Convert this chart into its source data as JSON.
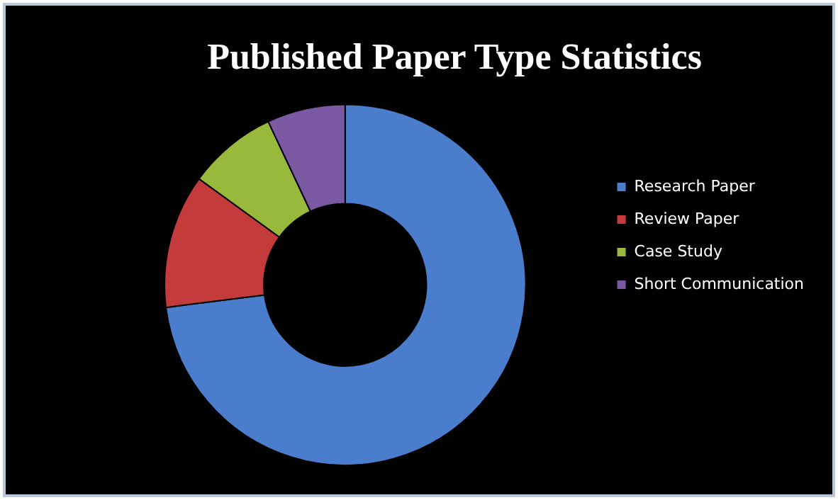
{
  "chart_data": {
    "type": "donut",
    "title": "Published Paper Type Statistics",
    "categories": [
      "Research Paper",
      "Review Paper",
      "Case Study",
      "Short Communication"
    ],
    "values": [
      73,
      12,
      8,
      7
    ],
    "colors": [
      "#4a7dcb",
      "#c33b3a",
      "#98b93c",
      "#7b58a2"
    ],
    "legend": "right"
  }
}
